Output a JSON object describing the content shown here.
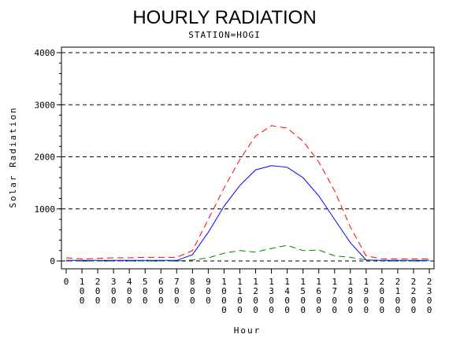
{
  "chart_data": {
    "type": "line",
    "title": "HOURLY RADIATION",
    "subtitle": "STATION=HOGI",
    "xlabel": "Hour",
    "ylabel": "Solar Radiation",
    "ylim": [
      0,
      4000
    ],
    "yticks": [
      0,
      1000,
      2000,
      3000,
      4000
    ],
    "grid": "horizontal dashed",
    "x": [
      0,
      1,
      2,
      3,
      4,
      5,
      6,
      7,
      8,
      9,
      10,
      11,
      12,
      13,
      14,
      15,
      16,
      17,
      18,
      19,
      20,
      21,
      22,
      23
    ],
    "xtick_labels": [
      "0",
      "100",
      "200",
      "300",
      "400",
      "500",
      "600",
      "700",
      "800",
      "900",
      "1000",
      "1100",
      "1200",
      "1300",
      "1400",
      "1500",
      "1600",
      "1700",
      "1800",
      "1900",
      "2000",
      "2100",
      "2200",
      "2300"
    ],
    "series": [
      {
        "color": "#ff0000",
        "style": "dashed",
        "values": [
          60,
          40,
          50,
          60,
          60,
          70,
          70,
          70,
          200,
          800,
          1400,
          1950,
          2400,
          2600,
          2550,
          2300,
          1900,
          1350,
          650,
          100,
          40,
          40,
          40,
          40
        ]
      },
      {
        "color": "#0000ff",
        "style": "solid",
        "values": [
          10,
          10,
          10,
          10,
          10,
          10,
          10,
          10,
          120,
          550,
          1050,
          1450,
          1750,
          1830,
          1800,
          1600,
          1250,
          800,
          350,
          20,
          10,
          10,
          10,
          10
        ]
      },
      {
        "color": "#008000",
        "style": "dashed",
        "values": [
          0,
          0,
          0,
          0,
          0,
          0,
          0,
          0,
          20,
          60,
          150,
          200,
          170,
          240,
          300,
          200,
          210,
          100,
          70,
          20,
          0,
          0,
          0,
          0
        ]
      }
    ]
  }
}
